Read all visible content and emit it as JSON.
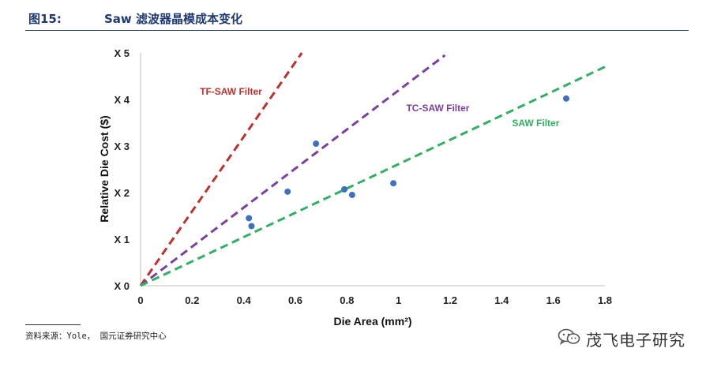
{
  "figure": {
    "number": "图15:",
    "title": "Saw 滤波器晶模成本变化"
  },
  "source": "资料来源：Yole， 国元证券研究中心",
  "watermark": {
    "text": "茂飞电子研究",
    "icon": "wechat-icon"
  },
  "colors": {
    "tf_saw": "#c0302e",
    "tc_saw": "#7b3fa0",
    "saw": "#2fb062",
    "points": "#3e70c0",
    "header": "#1f3a73"
  },
  "chart_data": {
    "type": "scatter",
    "xlabel": "Die Area (mm²)",
    "ylabel": "Relative Die Cost ($)",
    "xlim": [
      0,
      1.8
    ],
    "ylim": [
      0,
      5
    ],
    "x_ticks": [
      {
        "value": 0,
        "label": "0"
      },
      {
        "value": 0.2,
        "label": "0.2"
      },
      {
        "value": 0.4,
        "label": "0.4"
      },
      {
        "value": 0.6,
        "label": "0.6"
      },
      {
        "value": 0.8,
        "label": "0.8"
      },
      {
        "value": 1.0,
        "label": "1"
      },
      {
        "value": 1.2,
        "label": "1.2"
      },
      {
        "value": 1.4,
        "label": "1.4"
      },
      {
        "value": 1.6,
        "label": "1.6"
      },
      {
        "value": 1.8,
        "label": "1.8"
      }
    ],
    "y_ticks": [
      {
        "value": 0,
        "label": "X 0"
      },
      {
        "value": 1,
        "label": "X 1"
      },
      {
        "value": 2,
        "label": "X 2"
      },
      {
        "value": 3,
        "label": "X 3"
      },
      {
        "value": 4,
        "label": "X 4"
      },
      {
        "value": 5,
        "label": "X 5"
      }
    ],
    "grid": false,
    "points": [
      {
        "x": 0.42,
        "y": 1.45
      },
      {
        "x": 0.43,
        "y": 1.28
      },
      {
        "x": 0.57,
        "y": 2.02
      },
      {
        "x": 0.68,
        "y": 3.05
      },
      {
        "x": 0.79,
        "y": 2.07
      },
      {
        "x": 0.82,
        "y": 1.95
      },
      {
        "x": 0.98,
        "y": 2.2
      },
      {
        "x": 1.65,
        "y": 4.02
      }
    ],
    "lines": [
      {
        "name": "TF-SAW Filter",
        "color": "#c0302e",
        "x0": 0,
        "y0": 0,
        "x1": 0.625,
        "y1": 5.0
      },
      {
        "name": "TC-SAW Filter",
        "color": "#7b3fa0",
        "x0": 0,
        "y0": 0,
        "x1": 1.18,
        "y1": 4.95
      },
      {
        "name": "SAW Filter",
        "color": "#2fb062",
        "x0": 0,
        "y0": 0,
        "x1": 1.8,
        "y1": 4.7
      }
    ],
    "annotations": [
      {
        "text": "TF-SAW Filter",
        "x": 0.23,
        "y": 4.1,
        "color": "#c0302e"
      },
      {
        "text": "TC-SAW Filter",
        "x": 1.03,
        "y": 3.75,
        "color": "#7b3fa0"
      },
      {
        "text": "SAW Filter",
        "x": 1.44,
        "y": 3.42,
        "color": "#2fb062"
      }
    ]
  }
}
